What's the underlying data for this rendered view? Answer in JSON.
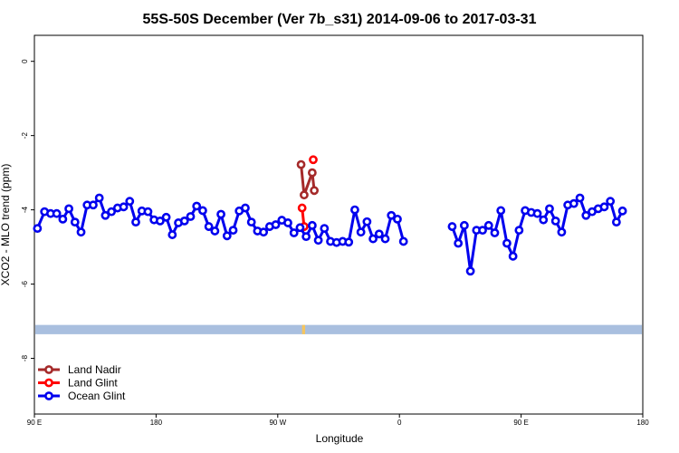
{
  "chart_data": {
    "type": "line",
    "title": "55S-50S December (Ver 7b_s31)   2014-09-06 to 2017-03-31",
    "xlabel": "Longitude",
    "ylabel": "XCO2 - MLO trend (ppm)",
    "xlim": [
      -90,
      210
    ],
    "ylim": [
      -9.5,
      0.7
    ],
    "x_ticks": [
      {
        "value": -90,
        "label": "90 E"
      },
      {
        "value": -30,
        "label": "180"
      },
      {
        "value": 30,
        "label": "90 W"
      },
      {
        "value": 90,
        "label": "0"
      },
      {
        "value": 150,
        "label": "90 E"
      },
      {
        "value": 210,
        "label": "180"
      }
    ],
    "y_ticks": [
      {
        "value": 0,
        "label": "0"
      },
      {
        "value": -2,
        "label": "-2"
      },
      {
        "value": -4,
        "label": "-4"
      },
      {
        "value": -6,
        "label": "-6"
      },
      {
        "value": -8,
        "label": "-8"
      }
    ],
    "grid": false,
    "legend_position": "bottom-left",
    "land_band": {
      "y_range": [
        -7.1,
        -7.35
      ],
      "color": "#a9bfdf",
      "highlight_color": "#f5c55e",
      "highlight_x": [
        42,
        43.5
      ]
    },
    "series": [
      {
        "name": "Land Nadir",
        "color": "#a52a2a",
        "segments": [
          [
            [
              41.5,
              -2.78
            ],
            [
              43,
              -3.6
            ],
            [
              47,
              -3.0
            ],
            [
              48,
              -3.48
            ]
          ]
        ]
      },
      {
        "name": "Land Glint",
        "color": "#ff0000",
        "segments": [
          [
            [
              42,
              -3.95
            ],
            [
              43,
              -4.45
            ]
          ],
          [
            [
              47.5,
              -2.65
            ]
          ]
        ]
      },
      {
        "name": "Ocean Glint",
        "color": "#0000ee",
        "segments": [
          [
            [
              -88.5,
              -4.5
            ],
            [
              -85,
              -4.05
            ],
            [
              -82,
              -4.1
            ],
            [
              -79,
              -4.1
            ],
            [
              -76,
              -4.25
            ],
            [
              -73,
              -3.97
            ],
            [
              -70,
              -4.33
            ],
            [
              -67,
              -4.6
            ],
            [
              -64,
              -3.87
            ],
            [
              -61,
              -3.87
            ],
            [
              -58,
              -3.68
            ],
            [
              -55,
              -4.15
            ],
            [
              -52,
              -4.05
            ],
            [
              -49,
              -3.95
            ],
            [
              -46,
              -3.92
            ],
            [
              -43,
              -3.77
            ],
            [
              -40,
              -4.33
            ],
            [
              -37,
              -4.03
            ],
            [
              -34,
              -4.05
            ],
            [
              -31,
              -4.27
            ],
            [
              -28,
              -4.3
            ],
            [
              -25,
              -4.2
            ],
            [
              -22,
              -4.67
            ],
            [
              -19,
              -4.35
            ],
            [
              -16,
              -4.3
            ],
            [
              -13,
              -4.18
            ],
            [
              -10,
              -3.9
            ],
            [
              -7,
              -4.02
            ],
            [
              -4,
              -4.45
            ],
            [
              -1,
              -4.57
            ],
            [
              2,
              -4.12
            ],
            [
              5,
              -4.7
            ],
            [
              8,
              -4.55
            ],
            [
              11,
              -4.03
            ],
            [
              14,
              -3.95
            ],
            [
              17,
              -4.33
            ],
            [
              20,
              -4.57
            ],
            [
              23,
              -4.6
            ],
            [
              26,
              -4.45
            ],
            [
              29,
              -4.4
            ],
            [
              32,
              -4.28
            ],
            [
              35,
              -4.35
            ],
            [
              38,
              -4.62
            ],
            [
              41,
              -4.48
            ],
            [
              44,
              -4.72
            ],
            [
              47,
              -4.42
            ],
            [
              50,
              -4.82
            ],
            [
              53,
              -4.5
            ],
            [
              56,
              -4.85
            ],
            [
              59,
              -4.88
            ],
            [
              62,
              -4.85
            ],
            [
              65,
              -4.87
            ],
            [
              68,
              -4.0
            ],
            [
              71,
              -4.6
            ],
            [
              74,
              -4.32
            ],
            [
              77,
              -4.78
            ],
            [
              80,
              -4.65
            ],
            [
              83,
              -4.78
            ],
            [
              86,
              -4.15
            ],
            [
              89,
              -4.25
            ],
            [
              92,
              -4.85
            ]
          ],
          [
            [
              116,
              -4.45
            ],
            [
              119,
              -4.9
            ],
            [
              122,
              -4.42
            ],
            [
              125,
              -5.65
            ],
            [
              128,
              -4.55
            ],
            [
              131,
              -4.55
            ],
            [
              134,
              -4.42
            ],
            [
              137,
              -4.62
            ],
            [
              140,
              -4.02
            ],
            [
              143,
              -4.9
            ],
            [
              146,
              -5.25
            ],
            [
              149,
              -4.55
            ],
            [
              152,
              -4.02
            ],
            [
              155,
              -4.07
            ],
            [
              158,
              -4.1
            ],
            [
              161,
              -4.27
            ],
            [
              164,
              -3.97
            ],
            [
              167,
              -4.3
            ],
            [
              170,
              -4.6
            ],
            [
              173,
              -3.87
            ],
            [
              176,
              -3.83
            ],
            [
              179,
              -3.68
            ],
            [
              182,
              -4.15
            ],
            [
              185,
              -4.05
            ],
            [
              188,
              -3.97
            ],
            [
              191,
              -3.92
            ],
            [
              194,
              -3.77
            ],
            [
              197,
              -4.33
            ],
            [
              200,
              -4.03
            ]
          ]
        ]
      }
    ]
  }
}
